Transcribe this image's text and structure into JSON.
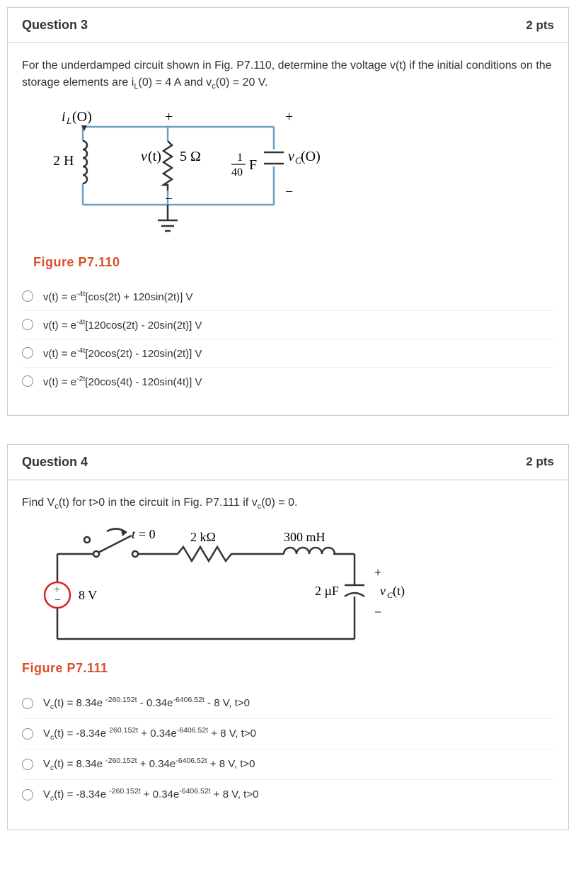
{
  "question3": {
    "title": "Question 3",
    "points": "2 pts",
    "prompt_html": "For the underdamped circuit shown in Fig. P7.110, determine the voltage v(t) if the initial conditions on the storage elements are i<sub>L</sub>(0) = 4 A and v<sub>c</sub>(0) = 20 V.",
    "figure_caption": "Figure P7.110",
    "circuit": {
      "wire_color": "#6aa0c4",
      "component_color": "#333333",
      "labels": {
        "iL0": "i_L(O)",
        "L": "2 H",
        "vt": "v(t)",
        "R": "5 Ω",
        "C": "1/40 F",
        "vc0": "v_C(O)",
        "plus": "+",
        "minus": "−"
      }
    },
    "options": [
      "v(t) = e<sup>-4t</sup>[cos(2t) + 120sin(2t)] V",
      "v(t) = e<sup>-4t</sup>[120cos(2t) - 20sin(2t)] V",
      "v(t) = e<sup>-4t</sup>[20cos(2t) - 120sin(2t)] V",
      "v(t) = e<sup>-2t</sup>[20cos(4t) - 120sin(4t)] V"
    ]
  },
  "question4": {
    "title": "Question 4",
    "points": "2 pts",
    "prompt_html": "Find V<sub>c</sub>(t) for t>0 in the circuit in Fig. P7.111 if v<sub>c</sub>(0) = 0.",
    "figure_caption": "Figure P7.111",
    "circuit": {
      "wire_color": "#333333",
      "source_color": "#d62222",
      "labels": {
        "t0": "t = 0",
        "R": "2 kΩ",
        "L": "300 mH",
        "V": "8 V",
        "C": "2 µF",
        "vct": "v_C(t)",
        "plus": "+",
        "minus": "−"
      }
    },
    "options": [
      "V<sub>c</sub>(t) = 8.34e <sup>-260.152t</sup> - 0.34e<sup>-6406.52t</sup> - 8 V, t>0",
      "V<sub>c</sub>(t) = -8.34e <sup>260.152t</sup> + 0.34e<sup>-6406.52t</sup> + 8 V, t>0",
      "V<sub>c</sub>(t) = 8.34e <sup>-260.152t</sup> + 0.34e<sup>-6406.52t</sup> + 8 V, t>0",
      "V<sub>c</sub>(t) = -8.34e <sup>-260.152t</sup> + 0.34e<sup>-6406.52t</sup> + 8 V, t>0"
    ]
  },
  "colors": {
    "border": "#cccccc",
    "text": "#333333",
    "figure_label": "#d94f2a"
  }
}
